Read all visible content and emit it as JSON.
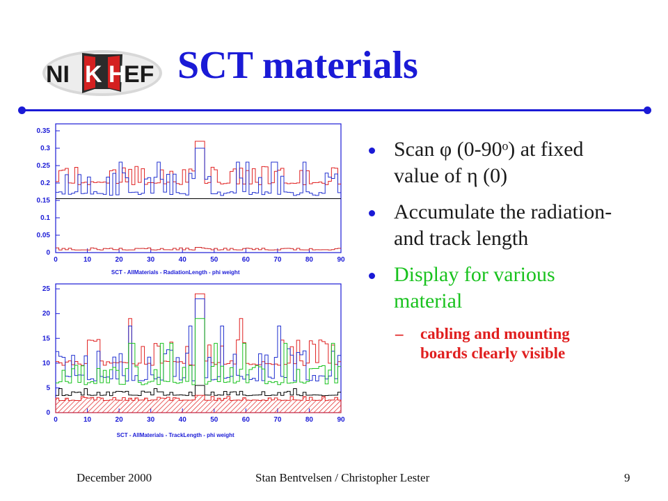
{
  "logo": {
    "text_1": "NI",
    "text_2": "K",
    "text_3": "H",
    "text_4": "EF",
    "icon": "nikhef-logo"
  },
  "title": "SCT materials",
  "bullets": [
    {
      "text": "Scan φ  (0-90ᵒ) at fixed value of η (0)",
      "color": "#1a1a1a"
    },
    {
      "text": "Accumulate the radiation- and track length",
      "color": "#1a1a1a"
    },
    {
      "text": "Display for various material",
      "color": "#19c21e"
    }
  ],
  "sub_bullet": {
    "dash": "–",
    "text": "cabling and mounting boards clearly visible",
    "color": "#e01e1e"
  },
  "footer": {
    "left": "December 2000",
    "center": "Stan Bentvelsen / Christopher Lester",
    "page": "9"
  },
  "chart_data": [
    {
      "type": "line",
      "title": "",
      "xlabel": "SCT - AllMaterials - RadiationLength - phi  weight",
      "ylabel": "",
      "xlim": [
        0,
        90
      ],
      "ylim": [
        0,
        0.37
      ],
      "x_ticks": [
        "0",
        "10",
        "20",
        "30",
        "40",
        "50",
        "60",
        "70",
        "80",
        "90"
      ],
      "y_ticks": [
        "0",
        "0.05",
        "0.1",
        "0.15",
        "0.2",
        "0.25",
        "0.3",
        "0.35"
      ],
      "series": [
        {
          "color": "#e02020",
          "baseline": 0.2,
          "step": 0.24,
          "peak": 0.32
        },
        {
          "color": "#2030d0",
          "baseline": 0.17,
          "step": 0.22,
          "peak": 0.3
        },
        {
          "color": "#000000",
          "baseline": 0.155,
          "step": 0.155,
          "peak": 0.155
        },
        {
          "color": "#d02020",
          "baseline": 0.008,
          "step": 0.012,
          "peak": 0.015
        }
      ]
    },
    {
      "type": "line",
      "title": "",
      "xlabel": "SCT - AllMaterials - TrackLength - phi  weight",
      "ylabel": "",
      "xlim": [
        0,
        90
      ],
      "ylim": [
        0,
        26
      ],
      "x_ticks": [
        "0",
        "10",
        "20",
        "30",
        "40",
        "50",
        "60",
        "70",
        "80",
        "90"
      ],
      "y_ticks": [
        "0",
        "5",
        "10",
        "15",
        "20",
        "25"
      ],
      "series": [
        {
          "color": "#e02020",
          "baseline": 10,
          "step": 14,
          "peak": 24
        },
        {
          "color": "#2030d0",
          "baseline": 7,
          "step": 12,
          "peak": 23
        },
        {
          "color": "#19c21e",
          "baseline": 6,
          "step": 9,
          "peak": 19
        },
        {
          "color": "#000000",
          "baseline": 3.5,
          "step": 4.2,
          "peak": 5.5
        },
        {
          "color": "#e02020",
          "baseline": 2.5,
          "step": 3,
          "peak": 3.5,
          "hatched": true
        }
      ]
    }
  ]
}
